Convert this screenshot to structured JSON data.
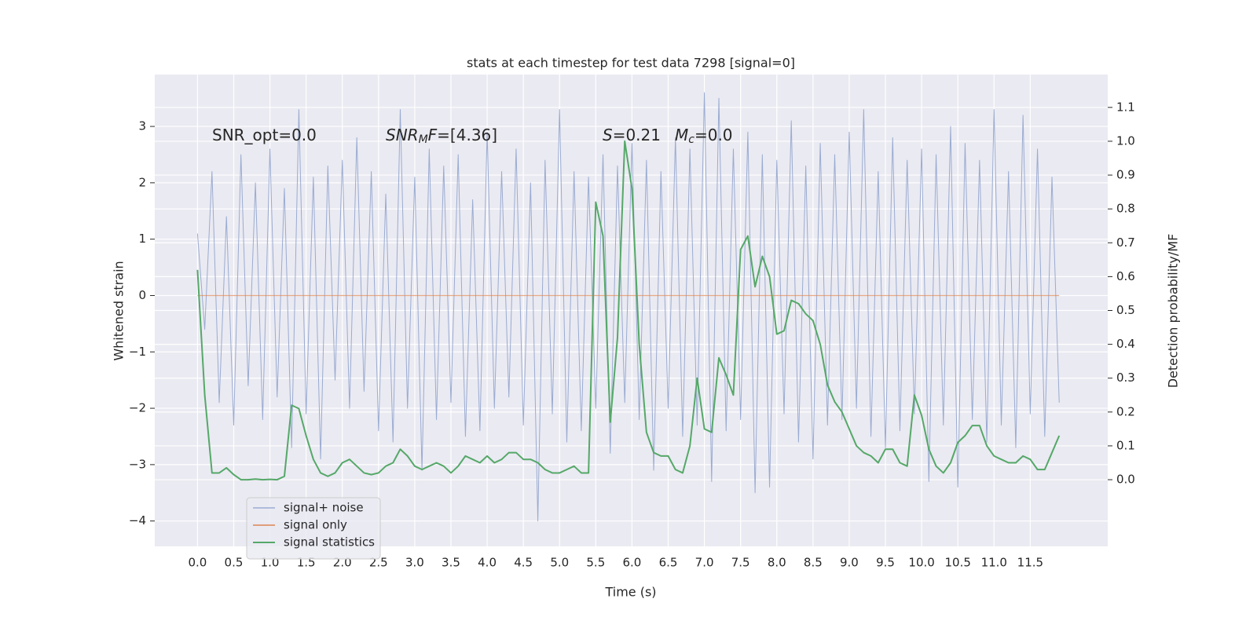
{
  "chart_data": {
    "type": "line",
    "title": "stats at each timestep for test data 7298 [signal=0]",
    "x_label": "Time (s)",
    "y_label": "Whitened strain",
    "y2_label": "Detection probability/MF",
    "annotations": [
      [
        "SNR_opt=0.0"
      ],
      [
        "SNR",
        "M",
        "F",
        "=[4.36]"
      ],
      [
        "S",
        "=0.21"
      ],
      [
        "M",
        "c",
        "=0.0"
      ]
    ],
    "x": [
      0,
      0.1,
      0.2,
      0.3,
      0.4,
      0.5,
      0.6,
      0.7,
      0.8,
      0.9,
      1,
      1.1,
      1.2,
      1.3,
      1.4,
      1.5,
      1.6,
      1.7,
      1.8,
      1.9,
      2,
      2.1,
      2.2,
      2.3,
      2.4,
      2.5,
      2.6,
      2.7,
      2.8,
      2.9,
      3,
      3.1,
      3.2,
      3.3,
      3.4,
      3.5,
      3.6,
      3.7,
      3.8,
      3.9,
      4,
      4.1,
      4.2,
      4.3,
      4.4,
      4.5,
      4.6,
      4.7,
      4.8,
      4.9,
      5,
      5.1,
      5.2,
      5.3,
      5.4,
      5.5,
      5.6,
      5.7,
      5.8,
      5.9,
      6,
      6.1,
      6.2,
      6.3,
      6.4,
      6.5,
      6.6,
      6.7,
      6.8,
      6.9,
      7,
      7.1,
      7.2,
      7.3,
      7.4,
      7.5,
      7.6,
      7.7,
      7.8,
      7.9,
      8,
      8.1,
      8.2,
      8.3,
      8.4,
      8.5,
      8.6,
      8.7,
      8.8,
      8.9,
      9,
      9.1,
      9.2,
      9.3,
      9.4,
      9.5,
      9.6,
      9.7,
      9.8,
      9.9,
      10,
      10.1,
      10.2,
      10.3,
      10.4,
      10.5,
      10.6,
      10.7,
      10.8,
      10.9,
      11,
      11.1,
      11.2,
      11.3,
      11.4,
      11.5,
      11.6,
      11.7,
      11.8,
      11.9
    ],
    "series": [
      {
        "name": "signal+ noise",
        "color": "#9aabd1",
        "axis": "y",
        "values": [
          1.1,
          -0.6,
          2.2,
          -1.9,
          1.4,
          -2.3,
          2.5,
          -1.6,
          2.0,
          -2.2,
          2.6,
          -1.8,
          1.9,
          -2.7,
          3.3,
          -2.1,
          2.1,
          -2.9,
          2.3,
          -1.5,
          2.4,
          -2.0,
          2.8,
          -1.7,
          2.2,
          -2.4,
          1.8,
          -2.6,
          3.3,
          -2.0,
          2.1,
          -3.1,
          2.6,
          -2.2,
          2.3,
          -1.9,
          2.5,
          -2.5,
          1.7,
          -2.4,
          2.9,
          -2.0,
          2.2,
          -1.8,
          2.6,
          -2.3,
          2.0,
          -4.0,
          2.4,
          -2.1,
          3.3,
          -2.6,
          2.2,
          -2.4,
          2.1,
          -2.0,
          2.5,
          -2.8,
          2.3,
          -1.9,
          2.7,
          -2.2,
          2.4,
          -3.1,
          2.2,
          -2.0,
          2.8,
          -2.5,
          2.6,
          -2.3,
          3.6,
          -3.3,
          3.5,
          -2.4,
          2.6,
          -2.2,
          2.9,
          -3.5,
          2.5,
          -3.4,
          2.4,
          -2.1,
          3.1,
          -2.6,
          2.3,
          -2.9,
          2.7,
          -2.3,
          2.5,
          -2.2,
          2.9,
          -2.0,
          3.3,
          -2.5,
          2.2,
          -2.7,
          2.8,
          -2.4,
          2.4,
          -2.1,
          2.6,
          -3.3,
          2.5,
          -2.3,
          3.0,
          -3.4,
          2.7,
          -2.2,
          2.4,
          -2.6,
          3.3,
          -2.3,
          2.2,
          -2.7,
          3.2,
          -2.1,
          2.6,
          -2.5,
          2.1,
          -1.9
        ]
      },
      {
        "name": "signal only",
        "color": "#dd8452",
        "axis": "y",
        "values": [
          0,
          0,
          0,
          0,
          0,
          0,
          0,
          0,
          0,
          0,
          0,
          0,
          0,
          0,
          0,
          0,
          0,
          0,
          0,
          0,
          0,
          0,
          0,
          0,
          0,
          0,
          0,
          0,
          0,
          0,
          0,
          0,
          0,
          0,
          0,
          0,
          0,
          0,
          0,
          0,
          0,
          0,
          0,
          0,
          0,
          0,
          0,
          0,
          0,
          0,
          0,
          0,
          0,
          0,
          0,
          0,
          0,
          0,
          0,
          0,
          0,
          0,
          0,
          0,
          0,
          0,
          0,
          0,
          0,
          0,
          0,
          0,
          0,
          0,
          0,
          0,
          0,
          0,
          0,
          0,
          0,
          0,
          0,
          0,
          0,
          0,
          0,
          0,
          0,
          0,
          0,
          0,
          0,
          0,
          0,
          0,
          0,
          0,
          0,
          0,
          0,
          0,
          0,
          0,
          0,
          0,
          0,
          0,
          0,
          0,
          0,
          0,
          0,
          0,
          0,
          0,
          0,
          0,
          0,
          0
        ]
      },
      {
        "name": "signal statistics",
        "color": "#55a868",
        "axis": "y2",
        "values": [
          0.62,
          0.25,
          0.02,
          0.02,
          0.035,
          0.015,
          0.0,
          0.0,
          0.002,
          0.0,
          0.001,
          0.0,
          0.01,
          0.22,
          0.21,
          0.13,
          0.06,
          0.02,
          0.01,
          0.02,
          0.05,
          0.06,
          0.04,
          0.02,
          0.015,
          0.02,
          0.04,
          0.05,
          0.09,
          0.07,
          0.04,
          0.03,
          0.04,
          0.05,
          0.04,
          0.02,
          0.04,
          0.07,
          0.06,
          0.05,
          0.07,
          0.05,
          0.06,
          0.08,
          0.08,
          0.06,
          0.06,
          0.05,
          0.03,
          0.02,
          0.02,
          0.03,
          0.04,
          0.02,
          0.02,
          0.82,
          0.72,
          0.17,
          0.42,
          1.0,
          0.86,
          0.4,
          0.14,
          0.08,
          0.07,
          0.07,
          0.03,
          0.02,
          0.1,
          0.3,
          0.15,
          0.14,
          0.36,
          0.31,
          0.25,
          0.68,
          0.72,
          0.57,
          0.66,
          0.6,
          0.43,
          0.44,
          0.53,
          0.52,
          0.49,
          0.47,
          0.4,
          0.28,
          0.23,
          0.2,
          0.15,
          0.1,
          0.08,
          0.07,
          0.05,
          0.09,
          0.09,
          0.05,
          0.04,
          0.25,
          0.19,
          0.09,
          0.04,
          0.02,
          0.05,
          0.11,
          0.13,
          0.16,
          0.16,
          0.1,
          0.07,
          0.06,
          0.05,
          0.05,
          0.07,
          0.06,
          0.03,
          0.03,
          0.08,
          0.13
        ]
      }
    ],
    "xlim": [
      -0.59,
      12.57
    ],
    "xticks": [
      {
        "value": 0,
        "label": "0.0"
      },
      0.5,
      {
        "value": 1,
        "label": "1.0"
      },
      1.5,
      {
        "value": 2,
        "label": "2.0"
      },
      2.5,
      {
        "value": 3,
        "label": "3.0"
      },
      3.5,
      {
        "value": 4,
        "label": "4.0"
      },
      4.5,
      {
        "value": 5,
        "label": "5.0"
      },
      5.5,
      {
        "value": 6,
        "label": "6.0"
      },
      6.5,
      {
        "value": 7,
        "label": "7.0"
      },
      7.5,
      {
        "value": 8,
        "label": "8.0"
      },
      8.5,
      {
        "value": 9,
        "label": "9.0"
      },
      9.5,
      {
        "value": 10,
        "label": "10.0"
      },
      10.5,
      {
        "value": 11,
        "label": "11.0"
      },
      11.5
    ],
    "ylim": [
      -4.45,
      3.92
    ],
    "yticks": [
      {
        "value": -4,
        "label": "−4"
      },
      {
        "value": -3,
        "label": "−3"
      },
      {
        "value": -2,
        "label": "−2"
      },
      {
        "value": -1,
        "label": "−1"
      },
      0,
      1,
      2,
      3
    ],
    "y2lim": [
      -0.197,
      1.197
    ],
    "y2ticks": [
      {
        "value": 0,
        "label": "0.0"
      },
      0.1,
      0.2,
      0.3,
      0.4,
      0.5,
      0.6,
      0.7,
      0.8,
      0.9,
      {
        "value": 1,
        "label": "1.0"
      },
      1.1
    ],
    "grid": true,
    "legend": "lower left"
  }
}
